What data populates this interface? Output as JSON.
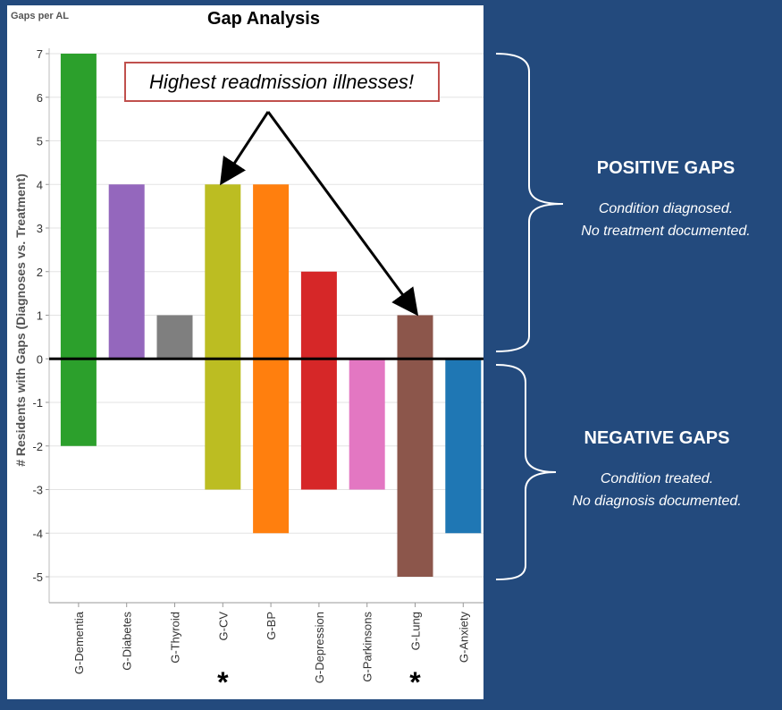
{
  "chart_data": {
    "type": "bar",
    "title": "Gap Analysis",
    "subtitle": "Gaps per AL",
    "ylabel": "# Residents with Gaps (Diagnoses vs. Treatment)",
    "xlabel": "",
    "ylim": [
      -5,
      7
    ],
    "yticks": [
      7,
      6,
      5,
      4,
      3,
      2,
      1,
      0,
      -1,
      -2,
      -3,
      -4,
      -5
    ],
    "grid": true,
    "categories": [
      "G-Dementia",
      "G-Diabetes",
      "G-Thyroid",
      "G-CV",
      "G-BP",
      "G-Depression",
      "G-Parkinsons",
      "G-Lung",
      "G-Anxiety"
    ],
    "series": [
      {
        "values": [
          7,
          4,
          1,
          4,
          4,
          2,
          0,
          1,
          0
        ]
      },
      {
        "values": [
          -2,
          0,
          0,
          -3,
          -4,
          -3,
          -3,
          -5,
          -4
        ]
      }
    ],
    "colors": [
      "#2ca02c",
      "#9467bd",
      "#7f7f7f",
      "#bcbd22",
      "#ff7f0e",
      "#d62728",
      "#e377c2",
      "#8c564b",
      "#1f77b4"
    ],
    "markers": [
      {
        "category": "G-CV",
        "text": "*"
      },
      {
        "category": "G-Lung",
        "text": "*"
      }
    ],
    "annotation": {
      "text": "Highest readmission illnesses!",
      "points_to": [
        "G-CV",
        "G-Lung"
      ]
    }
  },
  "positive": {
    "heading": "POSITIVE GAPS",
    "line1": "Condition diagnosed.",
    "line2": "No treatment documented."
  },
  "negative": {
    "heading": "NEGATIVE GAPS",
    "line1": "Condition treated.",
    "line2": "No diagnosis documented."
  },
  "colors": {
    "background": "#234a7d",
    "annotation_border": "#c0504d"
  }
}
